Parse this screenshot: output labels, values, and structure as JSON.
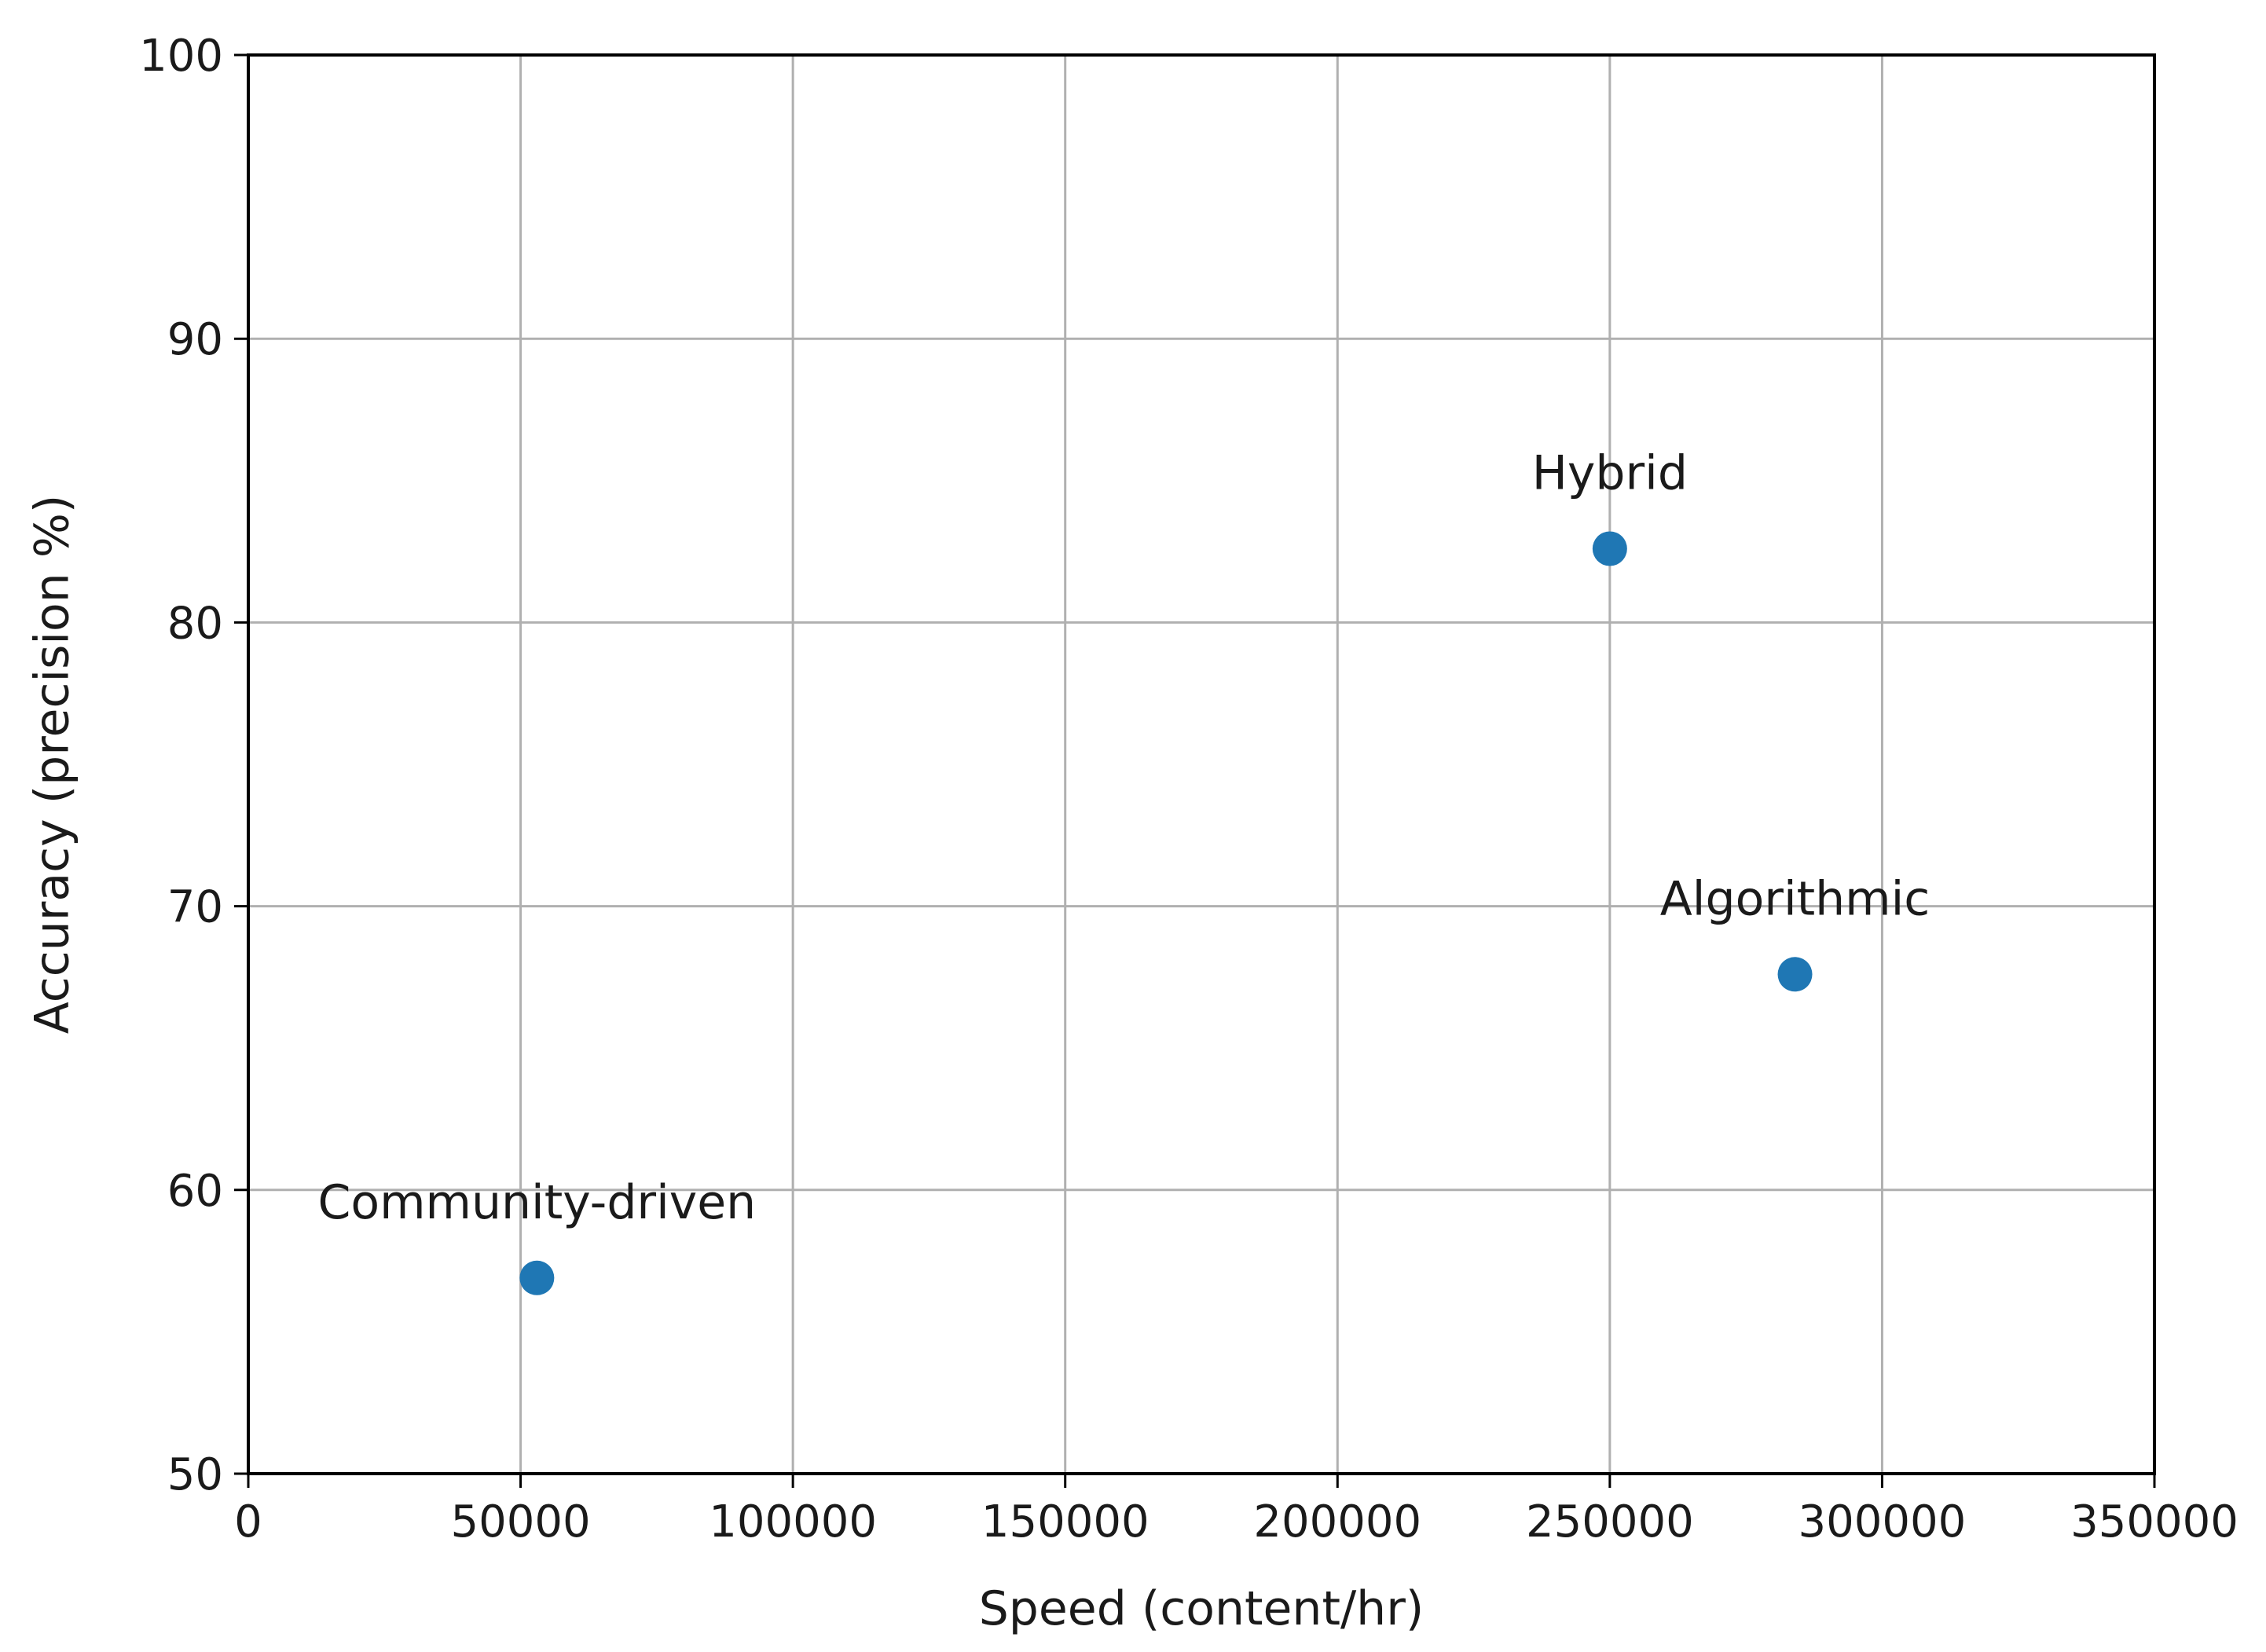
{
  "chart_data": {
    "type": "scatter",
    "title": "",
    "xlabel": "Speed (content/hr)",
    "ylabel": "Accuracy (precision %)",
    "xlim": [
      0,
      350000
    ],
    "ylim": [
      50,
      100
    ],
    "xticks": [
      0,
      50000,
      100000,
      150000,
      200000,
      250000,
      300000,
      350000
    ],
    "yticks": [
      50,
      60,
      70,
      80,
      90,
      100
    ],
    "grid": true,
    "point_color": "#1f77b4",
    "points": [
      {
        "label": "Community-driven",
        "x": 53000,
        "y": 56.9
      },
      {
        "label": "Hybrid",
        "x": 250000,
        "y": 82.6
      },
      {
        "label": "Algorithmic",
        "x": 284000,
        "y": 67.6
      }
    ]
  }
}
